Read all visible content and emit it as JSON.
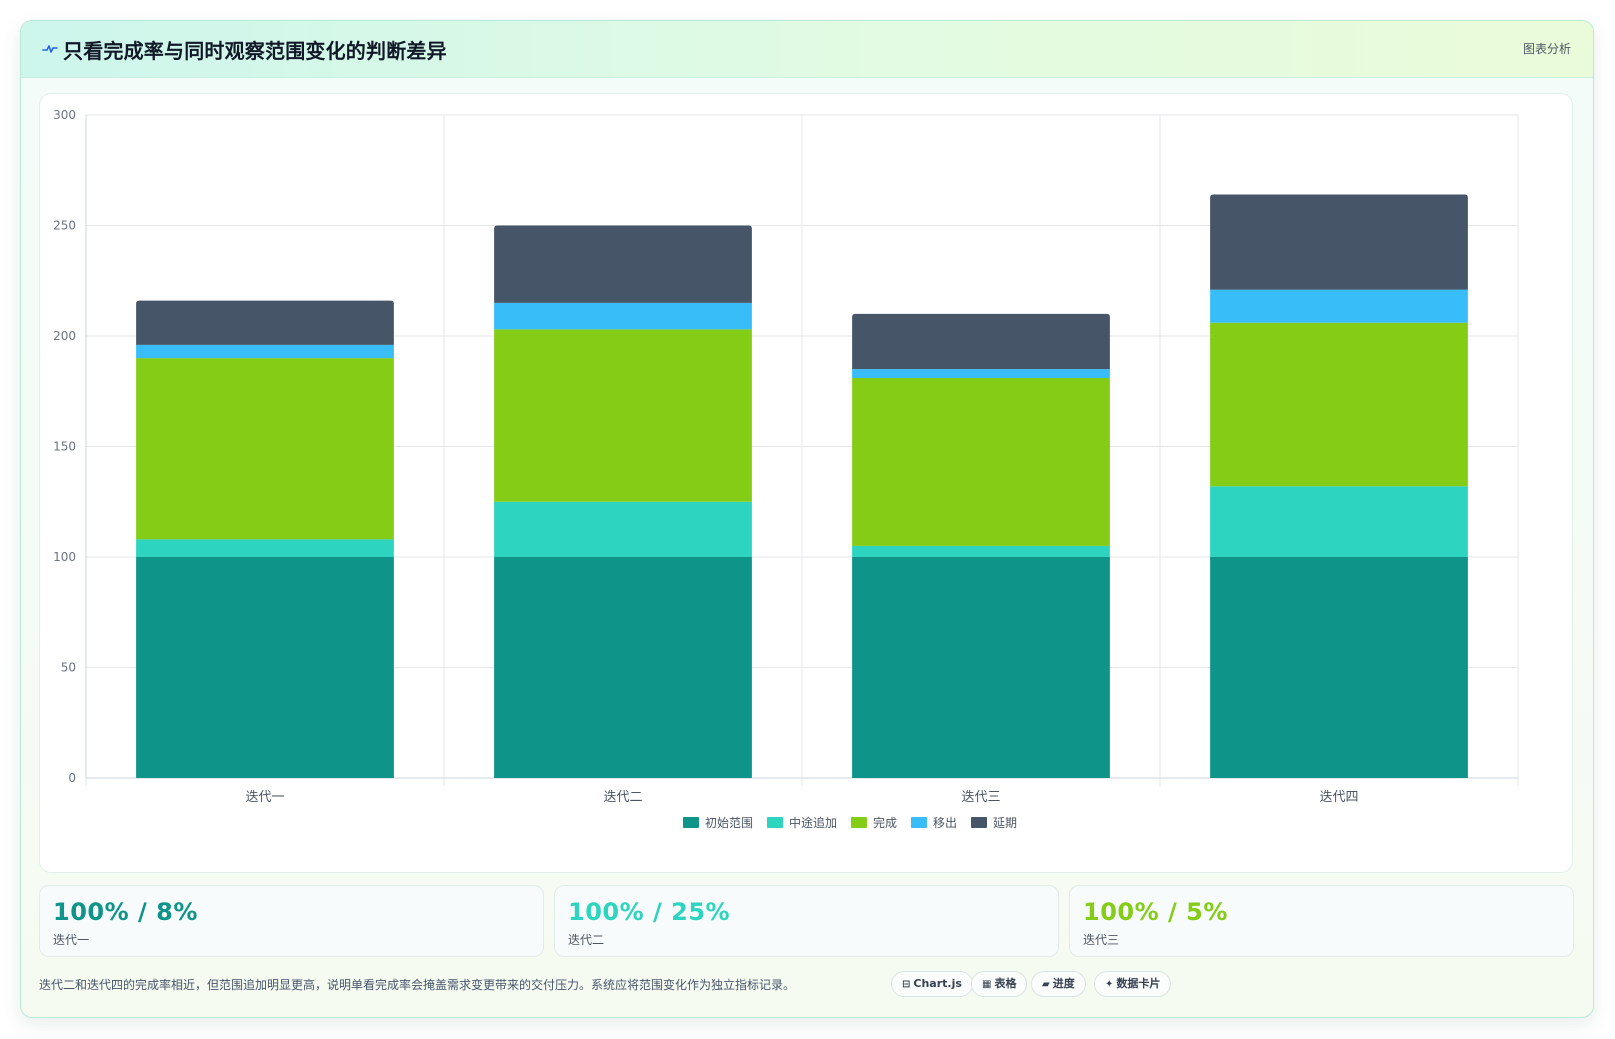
{
  "header": {
    "title": "只看完成率与同时观察范围变化的判断差异",
    "tag": "图表分析",
    "icon": "pulse-icon"
  },
  "chart_data": {
    "type": "bar",
    "stacked": true,
    "categories": [
      "迭代一",
      "迭代二",
      "迭代三",
      "迭代四"
    ],
    "series": [
      {
        "name": "初始范围",
        "color": "#0e9488",
        "values": [
          100,
          100,
          100,
          100
        ]
      },
      {
        "name": "中途追加",
        "color": "#2dd4bf",
        "values": [
          8,
          25,
          5,
          32
        ]
      },
      {
        "name": "完成",
        "color": "#84cc16",
        "values": [
          82,
          78,
          76,
          74
        ]
      },
      {
        "name": "移出",
        "color": "#38bdf8",
        "values": [
          6,
          12,
          4,
          15
        ]
      },
      {
        "name": "延期",
        "color": "#475569",
        "values": [
          20,
          35,
          25,
          43
        ]
      }
    ],
    "ylim": [
      0,
      300
    ],
    "yticks": [
      "0",
      "50",
      "100",
      "150",
      "200",
      "250",
      "300"
    ],
    "grid": true,
    "legend_position": "bottom"
  },
  "stats": [
    {
      "value": "100% / 8%",
      "label": "迭代一",
      "color": "#0e9488"
    },
    {
      "value": "100% / 25%",
      "label": "迭代二",
      "color": "#2dd4bf"
    },
    {
      "value": "100% / 5%",
      "label": "迭代三",
      "color": "#84cc16"
    }
  ],
  "note": "迭代二和迭代四的完成率相近，但范围追加明显更高，说明单看完成率会掩盖需求变更带来的交付压力。系统应将范围变化作为独立指标记录。",
  "chips": [
    {
      "icon": "⊟",
      "label": "Chart.js"
    },
    {
      "icon": "▦",
      "label": "表格"
    },
    {
      "icon": "▰",
      "label": "进度"
    },
    {
      "icon": "✦",
      "label": "数据卡片"
    }
  ]
}
